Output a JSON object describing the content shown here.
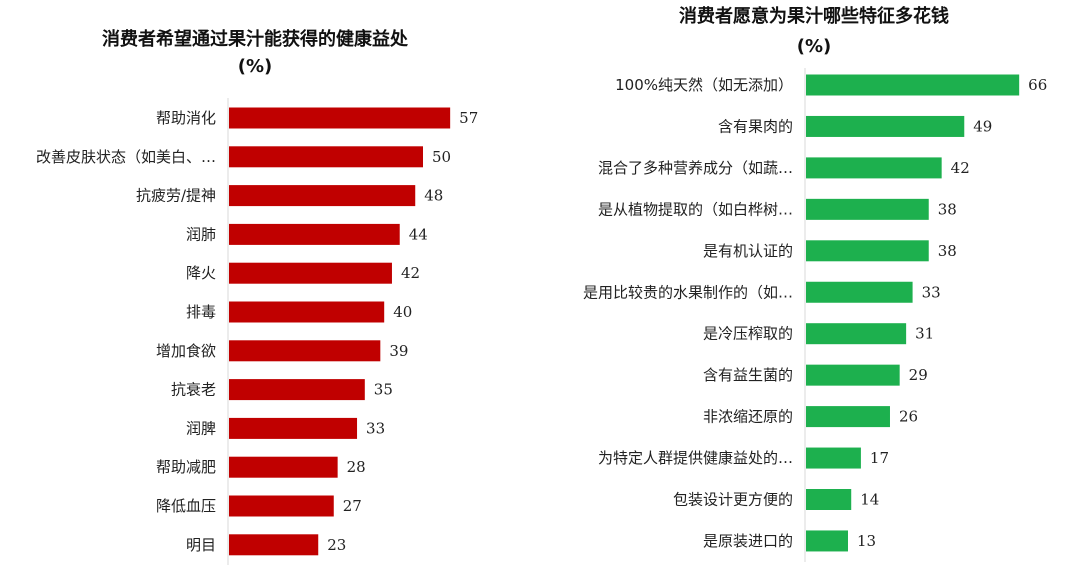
{
  "chart_data": [
    {
      "type": "bar",
      "orientation": "horizontal",
      "title": "消费者希望通过果汁能获得的健康益处",
      "subtitle": "(%)",
      "color": "#C00000",
      "categories": [
        "帮助消化",
        "改善皮肤状态（如美白、…",
        "抗疲劳/提神",
        "润肺",
        "降火",
        "排毒",
        "增加食欲",
        "抗衰老",
        "润脾",
        "帮助减肥",
        "降低血压",
        "明目"
      ],
      "values": [
        57,
        50,
        48,
        44,
        42,
        40,
        39,
        35,
        33,
        28,
        27,
        23
      ]
    },
    {
      "type": "bar",
      "orientation": "horizontal",
      "title": "消费者愿意为果汁哪些特征多花钱",
      "subtitle": "(%)",
      "color": "#1DB04E",
      "categories": [
        "100%纯天然（如无添加）",
        "含有果肉的",
        "混合了多种营养成分（如蔬…",
        "是从植物提取的（如白桦树…",
        "是有机认证的",
        "是用比较贵的水果制作的（如…",
        "是冷压榨取的",
        "含有益生菌的",
        "非浓缩还原的",
        "为特定人群提供健康益处的…",
        "包装设计更方便的",
        "是原装进口的"
      ],
      "values": [
        66,
        49,
        42,
        38,
        38,
        33,
        31,
        29,
        26,
        17,
        14,
        13
      ]
    }
  ]
}
